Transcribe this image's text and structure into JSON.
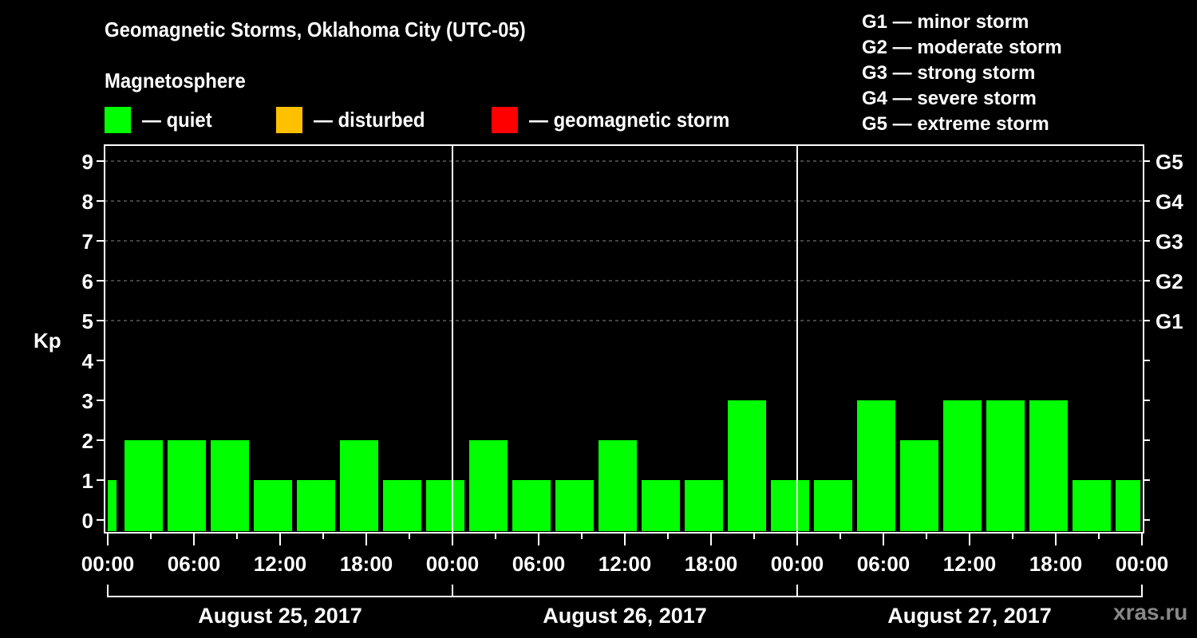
{
  "header": {
    "title": "Geomagnetic Storms, Oklahoma City (UTC-05)",
    "subtitle": "Magnetosphere"
  },
  "legend": [
    {
      "label": "— quiet",
      "color": "#00ff00"
    },
    {
      "label": "— disturbed",
      "color": "#ffc000"
    },
    {
      "label": "— geomagnetic storm",
      "color": "#ff0000"
    }
  ],
  "g_legend": [
    "G1 — minor storm",
    "G2 — moderate storm",
    "G3 — strong storm",
    "G4 — severe storm",
    "G5 — extreme storm"
  ],
  "watermark": "xras.ru",
  "chart_data": {
    "type": "bar",
    "title": "Geomagnetic Storms, Oklahoma City (UTC-05)",
    "ylabel": "Kp",
    "xlabel": "",
    "ylim": [
      0,
      9
    ],
    "yticks": [
      0,
      1,
      2,
      3,
      4,
      5,
      6,
      7,
      8,
      9
    ],
    "right_axis_labels": [
      {
        "kp": 5,
        "label": "G1"
      },
      {
        "kp": 6,
        "label": "G2"
      },
      {
        "kp": 7,
        "label": "G3"
      },
      {
        "kp": 8,
        "label": "G4"
      },
      {
        "kp": 9,
        "label": "G5"
      }
    ],
    "grid": "dashed horizontal at Kp 5-9",
    "xtick_labels": [
      "00:00",
      "06:00",
      "12:00",
      "18:00",
      "00:00",
      "06:00",
      "12:00",
      "18:00",
      "00:00",
      "06:00",
      "12:00",
      "18:00",
      "00:00"
    ],
    "days": [
      "August 25, 2017",
      "August 26, 2017",
      "August 27, 2017"
    ],
    "interval_hours": 3,
    "bar_color": "#00ff00",
    "categories": [
      "Aug 24 22:00 (partial)",
      "Aug 25 01:00",
      "Aug 25 04:00",
      "Aug 25 07:00",
      "Aug 25 10:00",
      "Aug 25 13:00",
      "Aug 25 16:00",
      "Aug 25 19:00",
      "Aug 25 22:00",
      "Aug 26 01:00",
      "Aug 26 04:00",
      "Aug 26 07:00",
      "Aug 26 10:00",
      "Aug 26 13:00",
      "Aug 26 16:00",
      "Aug 26 19:00",
      "Aug 26 22:00",
      "Aug 27 01:00",
      "Aug 27 04:00",
      "Aug 27 07:00",
      "Aug 27 10:00",
      "Aug 27 13:00",
      "Aug 27 16:00",
      "Aug 27 19:00",
      "Aug 27 22:00 (partial)"
    ],
    "values": [
      1,
      2,
      2,
      2,
      1,
      1,
      2,
      1,
      1,
      2,
      1,
      1,
      2,
      1,
      1,
      3,
      1,
      1,
      3,
      2,
      3,
      3,
      3,
      1,
      1
    ]
  }
}
